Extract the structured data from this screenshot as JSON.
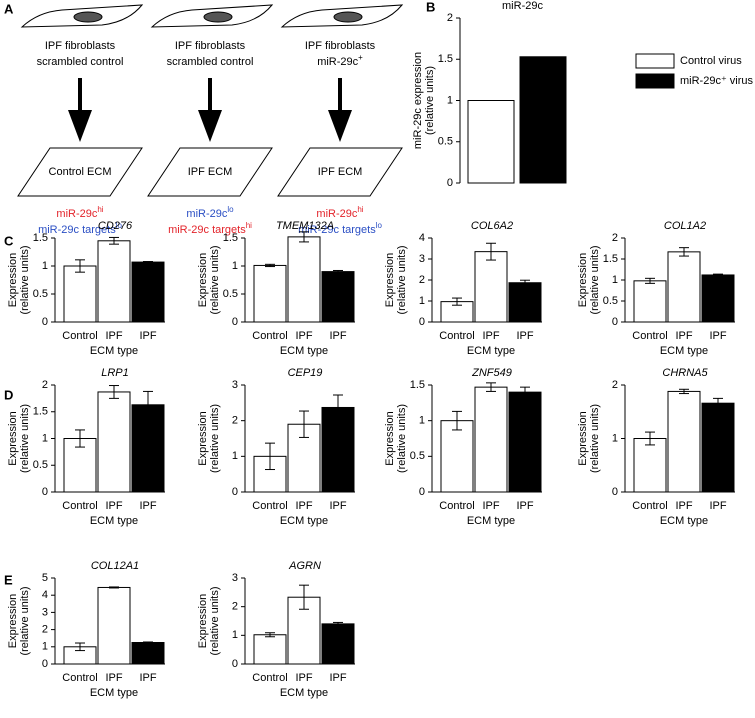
{
  "panel_labels": [
    "A",
    "B",
    "C",
    "D",
    "E"
  ],
  "diagram": {
    "columns": [
      {
        "cells": "IPF fibroblasts",
        "treatment": {
          "text": "scrambled control"
        },
        "ecm": "Control ECM",
        "mirna": {
          "text": "miR-29c",
          "sup": "hi"
        },
        "targets": {
          "text": "miR-29c targets",
          "sup": "lo"
        }
      },
      {
        "cells": "IPF fibroblasts",
        "treatment": {
          "text": "scrambled control"
        },
        "ecm": "IPF ECM",
        "mirna": {
          "text": "miR-29c",
          "sup": "lo"
        },
        "targets": {
          "text": "miR-29c targets",
          "sup": "hi"
        }
      },
      {
        "cells": "IPF fibroblasts",
        "treatment": {
          "text": "miR-29c",
          "sup": "+"
        },
        "ecm": "IPF ECM",
        "mirna": {
          "text": "miR-29c",
          "sup": "hi"
        },
        "targets": {
          "text": "miR-29c targets",
          "sup": "lo"
        }
      }
    ]
  },
  "chart_data": [
    {
      "type": "bar",
      "title": "miR-29c",
      "y_label": [
        "miR-29c expression",
        "(relative units)"
      ],
      "series": [
        {
          "name": "Control virus",
          "color": "#ffffff",
          "values": [
            1.0
          ]
        },
        {
          "name": "miR-29c⁺ virus",
          "color": "#000000",
          "values": [
            1.53
          ]
        }
      ],
      "ylim": [
        0,
        2
      ],
      "yticks": [
        0,
        0.5,
        1,
        1.5,
        2
      ],
      "legend": "right"
    },
    {
      "type": "bar",
      "title": "CD276",
      "y_label": [
        "Expression",
        "(relative units)"
      ],
      "x_label": "ECM type",
      "categories": [
        "Control",
        "IPF",
        "IPF"
      ],
      "values": [
        1.0,
        1.45,
        1.07
      ],
      "errors": [
        0.11,
        0.06,
        0.01
      ],
      "colors": [
        "#ffffff",
        "#ffffff",
        "#000000"
      ],
      "ylim": [
        0,
        1.5
      ],
      "yticks": [
        0,
        0.5,
        1,
        1.5
      ]
    },
    {
      "type": "bar",
      "title": "TMEM132A",
      "y_label": [
        "Expression",
        "(relative units)"
      ],
      "x_label": "ECM type",
      "categories": [
        "Control",
        "IPF",
        "IPF"
      ],
      "values": [
        1.01,
        1.52,
        0.9
      ],
      "errors": [
        0.02,
        0.09,
        0.02
      ],
      "colors": [
        "#ffffff",
        "#ffffff",
        "#000000"
      ],
      "ylim": [
        0,
        1.5
      ],
      "yticks": [
        0,
        0.5,
        1,
        1.5
      ]
    },
    {
      "type": "bar",
      "title": "COL6A2",
      "y_label": [
        "Expression",
        "(relative units)"
      ],
      "x_label": "ECM type",
      "categories": [
        "Control",
        "IPF",
        "IPF"
      ],
      "values": [
        0.97,
        3.35,
        1.87
      ],
      "errors": [
        0.17,
        0.4,
        0.12
      ],
      "colors": [
        "#ffffff",
        "#ffffff",
        "#000000"
      ],
      "ylim": [
        0,
        4
      ],
      "yticks": [
        0,
        1,
        2,
        3,
        4
      ]
    },
    {
      "type": "bar",
      "title": "COL1A2",
      "y_label": [
        "Expression",
        "(relative units)"
      ],
      "x_label": "ECM type",
      "categories": [
        "Control",
        "IPF",
        "IPF"
      ],
      "values": [
        0.98,
        1.67,
        1.12
      ],
      "errors": [
        0.06,
        0.1,
        0.02
      ],
      "colors": [
        "#ffffff",
        "#ffffff",
        "#000000"
      ],
      "ylim": [
        0,
        2
      ],
      "yticks": [
        0,
        0.5,
        1,
        1.5,
        2
      ]
    },
    {
      "type": "bar",
      "title": "LRP1",
      "y_label": [
        "Expression",
        "(relative units)"
      ],
      "x_label": "ECM type",
      "categories": [
        "Control",
        "IPF",
        "IPF"
      ],
      "values": [
        1.0,
        1.87,
        1.63
      ],
      "errors": [
        0.16,
        0.12,
        0.25
      ],
      "colors": [
        "#ffffff",
        "#ffffff",
        "#000000"
      ],
      "ylim": [
        0,
        2
      ],
      "yticks": [
        0,
        0.5,
        1,
        1.5,
        2
      ]
    },
    {
      "type": "bar",
      "title": "CEP19",
      "y_label": [
        "Expression",
        "(relative units)"
      ],
      "x_label": "ECM type",
      "categories": [
        "Control",
        "IPF",
        "IPF"
      ],
      "values": [
        1.0,
        1.9,
        2.37
      ],
      "errors": [
        0.37,
        0.37,
        0.35
      ],
      "colors": [
        "#ffffff",
        "#ffffff",
        "#000000"
      ],
      "ylim": [
        0,
        3
      ],
      "yticks": [
        0,
        1,
        2,
        3
      ]
    },
    {
      "type": "bar",
      "title": "ZNF549",
      "y_label": [
        "Expression",
        "(relative units)"
      ],
      "x_label": "ECM type",
      "categories": [
        "Control",
        "IPF",
        "IPF"
      ],
      "values": [
        1.0,
        1.47,
        1.4
      ],
      "errors": [
        0.13,
        0.06,
        0.07
      ],
      "colors": [
        "#ffffff",
        "#ffffff",
        "#000000"
      ],
      "ylim": [
        0,
        1.5
      ],
      "yticks": [
        0,
        0.5,
        1,
        1.5
      ]
    },
    {
      "type": "bar",
      "title": "CHRNA5",
      "y_label": [
        "Expression",
        "(relative units)"
      ],
      "x_label": "ECM type",
      "categories": [
        "Control",
        "IPF",
        "IPF"
      ],
      "values": [
        1.0,
        1.88,
        1.66
      ],
      "errors": [
        0.12,
        0.04,
        0.09
      ],
      "colors": [
        "#ffffff",
        "#ffffff",
        "#000000"
      ],
      "ylim": [
        0,
        2
      ],
      "yticks": [
        0,
        1,
        2
      ]
    },
    {
      "type": "bar",
      "title": "COL12A1",
      "y_label": [
        "Expression",
        "(relative units)"
      ],
      "x_label": "ECM type",
      "categories": [
        "Control",
        "IPF",
        "IPF"
      ],
      "values": [
        1.0,
        4.45,
        1.25
      ],
      "errors": [
        0.22,
        0.03,
        0.03
      ],
      "colors": [
        "#ffffff",
        "#ffffff",
        "#000000"
      ],
      "ylim": [
        0,
        5
      ],
      "yticks": [
        0,
        1,
        2,
        3,
        4,
        5
      ]
    },
    {
      "type": "bar",
      "title": "AGRN",
      "y_label": [
        "Expression",
        "(relative units)"
      ],
      "x_label": "ECM type",
      "categories": [
        "Control",
        "IPF",
        "IPF"
      ],
      "values": [
        1.02,
        2.33,
        1.4
      ],
      "errors": [
        0.07,
        0.42,
        0.05
      ],
      "colors": [
        "#ffffff",
        "#ffffff",
        "#000000"
      ],
      "ylim": [
        0,
        3
      ],
      "yticks": [
        0,
        1,
        2,
        3
      ]
    }
  ]
}
